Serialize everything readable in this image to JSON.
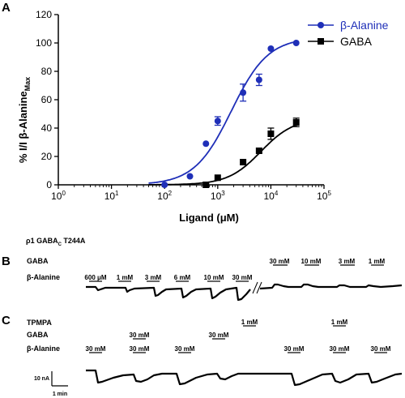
{
  "chart_data": {
    "type": "scatter",
    "panel_label": "A",
    "xscale": "log",
    "xlim": [
      1,
      100000
    ],
    "ylim": [
      0,
      120
    ],
    "xtick_bases": [
      "10",
      "10",
      "10",
      "10",
      "10",
      "10"
    ],
    "xtick_exps": [
      "0",
      "1",
      "2",
      "3",
      "4",
      "5"
    ],
    "yticks": [
      "0",
      "20",
      "40",
      "60",
      "80",
      "100",
      "120"
    ],
    "xlabel": {
      "pre": "Ligand (",
      "mu": "μ",
      "post": "M)"
    },
    "ylabel": {
      "main": "% I/I β-Alanine",
      "sub": "Max"
    },
    "legend_position": "top-right",
    "grid": false,
    "series": [
      {
        "name": "β-Alanine",
        "color": "#1f2fb8",
        "marker": "circle",
        "points": [
          {
            "x": 100,
            "y": 0,
            "err": 0
          },
          {
            "x": 300,
            "y": 6,
            "err": 0
          },
          {
            "x": 600,
            "y": 29,
            "err": 0
          },
          {
            "x": 1000,
            "y": 45,
            "err": 3
          },
          {
            "x": 3000,
            "y": 65,
            "err": 6
          },
          {
            "x": 6000,
            "y": 74,
            "err": 4
          },
          {
            "x": 10000,
            "y": 96,
            "err": 0
          },
          {
            "x": 30000,
            "y": 100,
            "err": 0
          }
        ],
        "fit_ec50": 1800,
        "fit_hill": 1.25,
        "fit_max": 104
      },
      {
        "name": "GABA",
        "color": "#000000",
        "marker": "square",
        "points": [
          {
            "x": 600,
            "y": 0,
            "err": 0
          },
          {
            "x": 1000,
            "y": 5,
            "err": 0
          },
          {
            "x": 3000,
            "y": 16,
            "err": 0
          },
          {
            "x": 6000,
            "y": 24,
            "err": 0
          },
          {
            "x": 10000,
            "y": 36,
            "err": 4
          },
          {
            "x": 30000,
            "y": 44,
            "err": 3
          }
        ],
        "fit_ec50": 6500,
        "fit_hill": 1.4,
        "fit_max": 47
      }
    ]
  },
  "panel_b": {
    "label": "B",
    "header": {
      "rho": "ρ1 GABA",
      "sub": "C",
      "post": " T244A"
    },
    "row_gaba": "GABA",
    "row_beta": "β-Alanine",
    "gaba_pulses": [
      "30 mM",
      "10 mM",
      "3 mM",
      "1 mM"
    ],
    "beta_pulses": [
      "600 μM",
      "1 mM",
      "3 mM",
      "6 mM",
      "10 mM",
      "30 mM"
    ]
  },
  "panel_c": {
    "label": "C",
    "row_tpmpa": "TPMPA",
    "row_gaba": "GABA",
    "row_beta": "β-Alanine",
    "tpmpa_pulses": [
      "1 mM",
      "1 mM"
    ],
    "gaba_pulses": [
      "30 mM",
      "30 mM"
    ],
    "beta_pulses": [
      "30 mM",
      "30 mM",
      "30 mM",
      "30 mM",
      "30 mM",
      "30 mM"
    ],
    "scale_current": "10 nA",
    "scale_time": "1 min"
  }
}
